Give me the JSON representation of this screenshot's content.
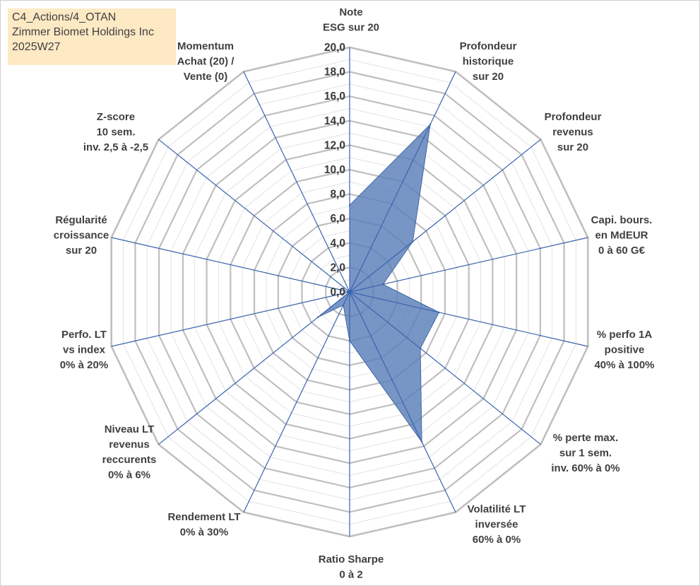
{
  "header": {
    "line1": "C4_Actions/4_OTAN",
    "line2": "Zimmer Biomet Holdings Inc",
    "line3": "2025W27"
  },
  "chart_data": {
    "type": "radar",
    "title": "",
    "rmin": 0,
    "rmax": 20,
    "tick_step": 2,
    "grid_lines": "2, 4, ... 20 (major)",
    "ticks": [
      "0,0",
      "2,0",
      "4,0",
      "6,0",
      "8,0",
      "10,0",
      "12,0",
      "14,0",
      "16,0",
      "18,0",
      "20,0"
    ],
    "axes": [
      {
        "label": [
          "Note",
          "ESG sur 20"
        ]
      },
      {
        "label": [
          "Profondeur",
          "historique",
          "sur 20"
        ]
      },
      {
        "label": [
          "Profondeur",
          "revenus",
          "sur 20"
        ]
      },
      {
        "label": [
          "Capi. bours.",
          "en MdEUR",
          "0 à 60 G€"
        ]
      },
      {
        "label": [
          "% perfo 1A",
          "positive",
          "40% à 100%"
        ]
      },
      {
        "label": [
          "% perte max.",
          "sur 1 sem.",
          "inv. 60% à 0%"
        ]
      },
      {
        "label": [
          "Volatilité LT",
          "inversée",
          "60% à 0%"
        ]
      },
      {
        "label": [
          "Ratio Sharpe",
          "0 à 2"
        ]
      },
      {
        "label": [
          "Rendement LT",
          "0% à 30%"
        ]
      },
      {
        "label": [
          "Niveau LT",
          "revenus",
          "reccurents",
          "0% à 6%"
        ]
      },
      {
        "label": [
          "Perfo. LT",
          "vs index",
          "0% à 20%"
        ]
      },
      {
        "label": [
          "Régularité",
          "croissance",
          "sur 20"
        ]
      },
      {
        "label": [
          "Z-score",
          "10 sem.",
          "inv. 2,5 à -2,5"
        ]
      },
      {
        "label": [
          "Momentum",
          "Achat (20) /",
          "Vente (0)"
        ]
      }
    ],
    "series": [
      {
        "values": [
          7.1,
          15.2,
          6.6,
          2.8,
          7.5,
          7.4,
          13.6,
          4.0,
          1.2,
          3.3,
          0.0,
          0.0,
          0.0,
          0.0
        ]
      }
    ],
    "colors": {
      "fill": "#5a7fb8",
      "fill_opacity": 0.82,
      "stroke": "#3f66a8",
      "spoke": "#3a62ad",
      "major_grid": "#bfbfbf",
      "minor_grid": "#e2e2e2"
    }
  }
}
